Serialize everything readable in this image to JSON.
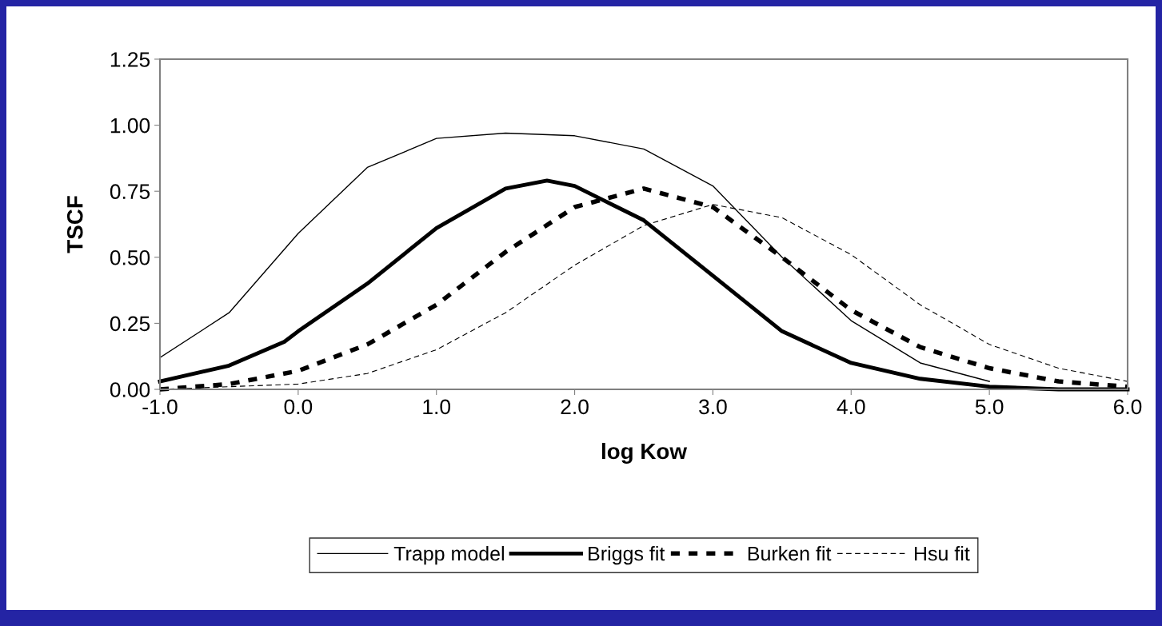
{
  "chart_data": {
    "type": "line",
    "xlabel": "log Kow",
    "ylabel": "TSCF",
    "xlim": [
      -1,
      6
    ],
    "ylim": [
      0,
      1.25
    ],
    "xticks": [
      {
        "value": -1,
        "label": "-1.0"
      },
      {
        "value": 0,
        "label": "0.0"
      },
      {
        "value": 1,
        "label": "1.0"
      },
      {
        "value": 2,
        "label": "2.0"
      },
      {
        "value": 3,
        "label": "3.0"
      },
      {
        "value": 4,
        "label": "4.0"
      },
      {
        "value": 5,
        "label": "5.0"
      },
      {
        "value": 6,
        "label": "6.0"
      }
    ],
    "yticks": [
      {
        "value": 0,
        "label": "0.00"
      },
      {
        "value": 0.25,
        "label": "0.25"
      },
      {
        "value": 0.5,
        "label": "0.50"
      },
      {
        "value": 0.75,
        "label": "0.75"
      },
      {
        "value": 1,
        "label": "1.00"
      },
      {
        "value": 1.25,
        "label": "1.25"
      }
    ],
    "grid": false,
    "legend": "bottom",
    "marker": "none",
    "series": [
      {
        "name": "Trapp model",
        "color": "#000000",
        "line_style": "solid",
        "x": [
          -1,
          -0.5,
          0,
          0.5,
          1,
          1.5,
          2,
          2.5,
          3,
          3.5,
          4,
          4.5,
          5
        ],
        "values": [
          0.12,
          0.29,
          0.59,
          0.84,
          0.95,
          0.97,
          0.96,
          0.91,
          0.77,
          0.5,
          0.26,
          0.1,
          0.03
        ]
      },
      {
        "name": "Briggs fit",
        "color": "#000000",
        "line_style": "solid",
        "x": [
          -1,
          -0.5,
          -0.1,
          0,
          0.5,
          1,
          1.5,
          1.8,
          2,
          2.5,
          3,
          3.5,
          4,
          4.5,
          5,
          5.5,
          6
        ],
        "values": [
          0.03,
          0.09,
          0.18,
          0.22,
          0.4,
          0.61,
          0.76,
          0.79,
          0.77,
          0.64,
          0.43,
          0.22,
          0.1,
          0.04,
          0.01,
          0,
          0
        ]
      },
      {
        "name": "Burken fit",
        "color": "#000000",
        "line_style": "dashed",
        "x": [
          -1,
          -0.5,
          0,
          0.5,
          1,
          1.5,
          2,
          2.5,
          3,
          3.5,
          4,
          4.5,
          5,
          5.5,
          6
        ],
        "values": [
          0,
          0.02,
          0.07,
          0.17,
          0.32,
          0.52,
          0.69,
          0.76,
          0.69,
          0.5,
          0.3,
          0.16,
          0.08,
          0.03,
          0.01
        ]
      },
      {
        "name": "Hsu fit",
        "color": "#000000",
        "line_style": "dashed",
        "x": [
          -1,
          -0.5,
          0,
          0.5,
          1,
          1.5,
          2,
          2.5,
          3,
          3.5,
          4,
          4.5,
          5,
          5.5,
          6
        ],
        "values": [
          0,
          0.01,
          0.02,
          0.06,
          0.15,
          0.29,
          0.47,
          0.62,
          0.7,
          0.65,
          0.51,
          0.32,
          0.17,
          0.08,
          0.03
        ]
      }
    ]
  }
}
